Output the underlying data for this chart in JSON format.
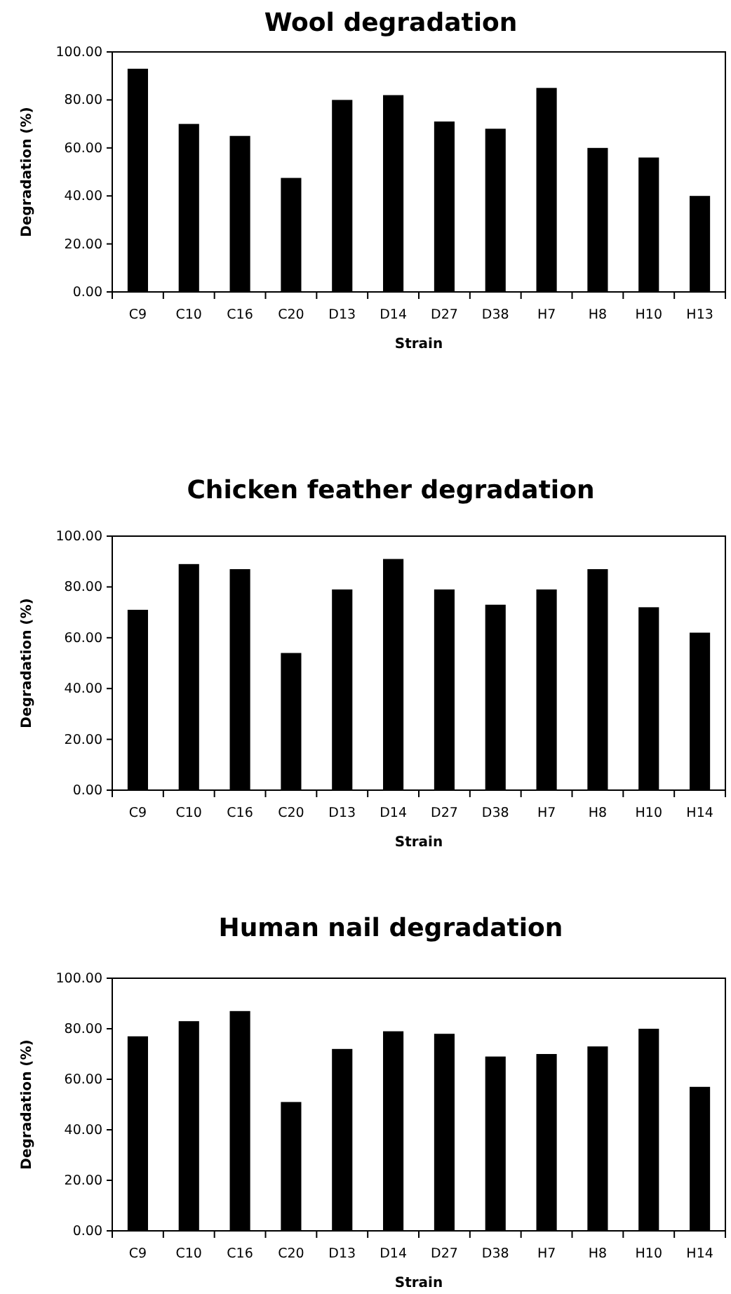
{
  "chart_data": [
    {
      "type": "bar",
      "title": "Wool degradation",
      "xlabel": "Strain",
      "ylabel": "Degradation  (%)",
      "categories": [
        "C9",
        "C10",
        "C16",
        "C20",
        "D13",
        "D14",
        "D27",
        "D38",
        "H7",
        "H8",
        "H10",
        "H13"
      ],
      "values": [
        93,
        70,
        65,
        47.5,
        80,
        82,
        71,
        68,
        85,
        60,
        56,
        40
      ],
      "color": "#000000",
      "ylim": [
        0,
        100
      ],
      "yticks": [
        {
          "value": 0,
          "label": "0.00"
        },
        {
          "value": 20,
          "label": "20.00"
        },
        {
          "value": 40,
          "label": "40.00"
        },
        {
          "value": 60,
          "label": "60.00"
        },
        {
          "value": 80,
          "label": "80.00"
        },
        {
          "value": 100,
          "label": "100.00"
        }
      ],
      "grid": false,
      "legend": false
    },
    {
      "type": "bar",
      "title": "Chicken feather degradation",
      "xlabel": "Strain",
      "ylabel": "Degradation  (%)",
      "categories": [
        "C9",
        "C10",
        "C16",
        "C20",
        "D13",
        "D14",
        "D27",
        "D38",
        "H7",
        "H8",
        "H10",
        "H14"
      ],
      "values": [
        71,
        89,
        87,
        54,
        79,
        91,
        79,
        73,
        79,
        87,
        72,
        62
      ],
      "color": "#000000",
      "ylim": [
        0,
        100
      ],
      "yticks": [
        {
          "value": 0,
          "label": "0.00"
        },
        {
          "value": 20,
          "label": "20.00"
        },
        {
          "value": 40,
          "label": "40.00"
        },
        {
          "value": 60,
          "label": "60.00"
        },
        {
          "value": 80,
          "label": "80.00"
        },
        {
          "value": 100,
          "label": "100.00"
        }
      ],
      "grid": false,
      "legend": false
    },
    {
      "type": "bar",
      "title": "Human nail degradation",
      "xlabel": "Strain",
      "ylabel": "Degradation  (%)",
      "categories": [
        "C9",
        "C10",
        "C16",
        "C20",
        "D13",
        "D14",
        "D27",
        "D38",
        "H7",
        "H8",
        "H10",
        "H14"
      ],
      "values": [
        77,
        83,
        87,
        51,
        72,
        79,
        78,
        69,
        70,
        73,
        80,
        57
      ],
      "color": "#000000",
      "ylim": [
        0,
        100
      ],
      "yticks": [
        {
          "value": 0,
          "label": "0.00"
        },
        {
          "value": 20,
          "label": "20.00"
        },
        {
          "value": 40,
          "label": "40.00"
        },
        {
          "value": 60,
          "label": "60.00"
        },
        {
          "value": 80,
          "label": "80.00"
        },
        {
          "value": 100,
          "label": "100.00"
        }
      ],
      "grid": false,
      "legend": false
    }
  ]
}
